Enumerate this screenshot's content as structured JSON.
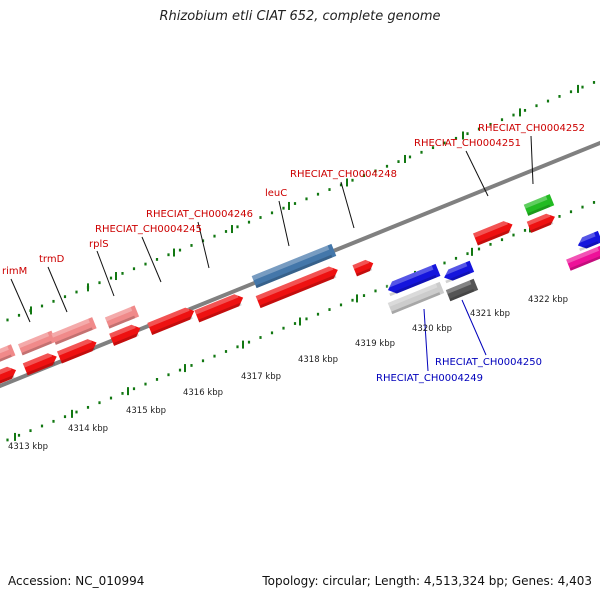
{
  "title": "Rhizobium etli CIAT 652, complete genome",
  "footer": {
    "accession": "Accession: NC_010994",
    "summary": "Topology: circular; Length: 4,513,324 bp; Genes: 4,403"
  },
  "colors": {
    "forward_gene": "#ee1111",
    "forward_gene_light": "#f08a8a",
    "reverse_gene": "#1515dd",
    "steelblue_gene": "#4477aa",
    "green_gene": "#22bb22",
    "magenta_gene": "#ee1199",
    "gray_gene": "#555555",
    "lightgray_gene": "#cccccc",
    "tick": "#117711",
    "backbone": "#808080",
    "fwd_label": "#cc0000",
    "rev_label": "#0000bb"
  },
  "scale": {
    "ticks": [
      "4313 kbp",
      "4314 kbp",
      "4315 kbp",
      "4316 kbp",
      "4317 kbp",
      "4318 kbp",
      "4319 kbp",
      "4320 kbp",
      "4321 kbp",
      "4322 kbp"
    ]
  },
  "forward_labels": [
    {
      "text": "rimM"
    },
    {
      "text": "trmD"
    },
    {
      "text": "rplS"
    },
    {
      "text": "RHECIAT_CH0004245"
    },
    {
      "text": "RHECIAT_CH0004246"
    },
    {
      "text": "leuC"
    },
    {
      "text": "RHECIAT_CH0004248"
    },
    {
      "text": "RHECIAT_CH0004251"
    },
    {
      "text": "RHECIAT_CH0004252"
    }
  ],
  "reverse_labels": [
    {
      "text": "RHECIAT_CH0004249"
    },
    {
      "text": "RHECIAT_CH0004250"
    }
  ]
}
